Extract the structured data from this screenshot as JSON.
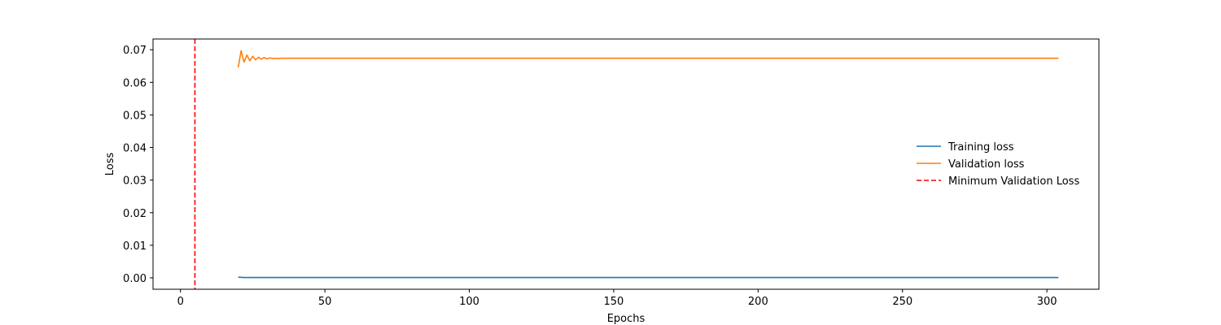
{
  "chart_data": {
    "type": "line",
    "title": "",
    "xlabel": "Epochs",
    "ylabel": "Loss",
    "xlim": [
      -9.5,
      318
    ],
    "ylim": [
      -0.0035,
      0.0733
    ],
    "xticks": [
      0,
      50,
      100,
      150,
      200,
      250,
      300
    ],
    "yticks": [
      0.0,
      0.01,
      0.02,
      0.03,
      0.04,
      0.05,
      0.06,
      0.07
    ],
    "ytick_labels": [
      "0.00",
      "0.01",
      "0.02",
      "0.03",
      "0.04",
      "0.05",
      "0.06",
      "0.07"
    ],
    "grid": false,
    "legend_position": "center-right",
    "series": [
      {
        "name": "Training loss",
        "color": "#1f77b4",
        "style": "solid",
        "x": [
          20,
          21,
          22,
          24,
          30,
          60,
          100,
          150,
          200,
          250,
          304
        ],
        "y": [
          0.0002,
          0.00015,
          0.0001,
          0.0001,
          0.0001,
          0.0001,
          0.0001,
          0.0001,
          0.0001,
          0.0001,
          0.0001
        ]
      },
      {
        "name": "Validation loss",
        "color": "#ff7f0e",
        "style": "solid",
        "x": [
          20,
          21,
          22,
          23,
          24,
          25,
          26,
          27,
          28,
          29,
          30,
          31,
          32,
          33,
          34,
          35,
          40,
          60,
          100,
          150,
          200,
          250,
          304
        ],
        "y": [
          0.0646,
          0.0697,
          0.0662,
          0.0684,
          0.0666,
          0.068,
          0.0669,
          0.0677,
          0.0671,
          0.0676,
          0.0672,
          0.0675,
          0.0673,
          0.0674,
          0.0673,
          0.0674,
          0.0674,
          0.0674,
          0.0674,
          0.0674,
          0.0674,
          0.0674,
          0.0674
        ]
      }
    ],
    "vlines": [
      {
        "name": "Minimum Validation Loss",
        "x": 5,
        "color": "#ff0000",
        "style": "dashed"
      }
    ]
  }
}
